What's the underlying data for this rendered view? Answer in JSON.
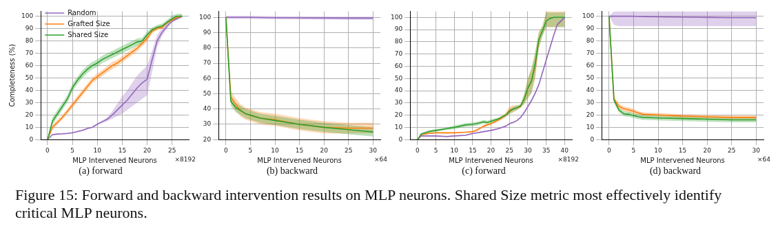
{
  "chart_data": [
    {
      "type": "line",
      "title": "(a) forward",
      "xlabel": "MLP Intervened Neurons",
      "ylabel": "Completeness (%)",
      "annotations": [
        "×8192"
      ],
      "xlim": [
        -1.35,
        28.35
      ],
      "xticks": [
        0,
        5,
        10,
        15,
        20,
        25
      ],
      "ylim": [
        0,
        104
      ],
      "yticks": [
        0,
        10,
        20,
        30,
        40,
        50,
        60,
        70,
        80,
        90,
        100
      ],
      "grid": true,
      "legend": "top left",
      "x": [
        0,
        1,
        2,
        3,
        4,
        5,
        6,
        7,
        8,
        9,
        10,
        11,
        12,
        13,
        14,
        15,
        16,
        17,
        18,
        19,
        20,
        21,
        22,
        23,
        24,
        25,
        26,
        27
      ],
      "series": [
        {
          "name": "Random",
          "color": "#9467bd",
          "values": [
            0,
            4,
            4.5,
            4.7,
            5,
            5.5,
            6.5,
            7.5,
            9,
            10,
            12.5,
            14.5,
            16.5,
            20,
            24,
            28,
            32,
            37,
            42,
            46,
            49,
            65,
            80,
            87,
            92,
            96,
            98,
            100
          ],
          "lower": [
            0,
            3.5,
            4,
            4.2,
            4.5,
            5,
            6,
            7,
            8.5,
            9.5,
            12,
            13.5,
            15,
            17,
            19,
            21,
            24,
            27,
            30,
            33,
            36,
            55,
            75,
            84,
            90,
            95,
            97,
            99
          ],
          "upper": [
            0,
            4.5,
            5,
            5.2,
            5.5,
            6,
            7,
            8,
            9.5,
            10.5,
            13,
            15.5,
            18,
            23,
            29,
            35,
            40,
            46,
            52,
            56,
            60,
            72,
            85,
            90,
            94,
            97,
            99,
            100
          ]
        },
        {
          "name": "Grafted Size",
          "color": "#ff7f0e",
          "values": [
            0,
            10,
            14,
            18,
            23,
            28,
            33,
            38,
            43,
            48,
            51,
            54,
            57,
            60,
            62,
            65,
            68,
            71,
            74,
            78,
            82,
            88,
            90,
            91,
            95,
            97,
            99,
            100
          ],
          "lower": [
            0,
            8,
            12,
            16,
            21,
            25.5,
            30.5,
            35.5,
            40.5,
            45.5,
            48.5,
            51.5,
            54.5,
            57,
            59.5,
            62.5,
            65.5,
            68.5,
            71.5,
            75.5,
            79.5,
            86,
            88.5,
            89.5,
            93.5,
            96,
            98,
            99
          ],
          "upper": [
            0,
            12,
            16,
            20,
            25,
            30.5,
            35.5,
            40.5,
            45.5,
            50.5,
            53.5,
            56.5,
            59.5,
            63,
            64.5,
            67.5,
            70.5,
            73.5,
            76.5,
            80.5,
            84.5,
            90,
            91.5,
            92.5,
            96.5,
            98,
            100,
            101
          ]
        },
        {
          "name": "Shared Size",
          "color": "#2ca02c",
          "values": [
            0,
            15,
            21,
            27,
            33,
            42,
            48,
            53,
            57,
            60,
            62,
            65,
            67,
            69,
            71,
            73,
            75,
            77,
            79,
            80,
            85,
            89,
            91,
            92,
            95,
            98,
            100,
            100
          ],
          "lower": [
            0,
            12,
            18,
            24,
            30,
            39,
            45,
            50,
            54,
            57,
            59,
            62,
            64,
            66,
            68,
            70,
            72,
            74,
            76,
            77.5,
            82.5,
            87,
            89.5,
            90.5,
            93.5,
            96.5,
            98.5,
            99
          ],
          "upper": [
            0,
            18,
            24,
            30,
            36,
            45,
            51,
            56,
            60,
            63,
            65,
            68,
            70,
            72,
            74,
            76,
            78,
            80,
            82,
            82.5,
            87.5,
            91,
            93,
            94,
            97,
            100.5,
            102,
            102
          ]
        }
      ]
    },
    {
      "type": "line",
      "title": "(b) backward",
      "xlabel": "MLP Intervened Neurons",
      "annotations": [
        "×64"
      ],
      "xlim": [
        -1.5,
        31.5
      ],
      "xticks": [
        0,
        5,
        10,
        15,
        20,
        25,
        30
      ],
      "ylim": [
        20,
        104
      ],
      "yticks": [
        20,
        30,
        40,
        50,
        60,
        70,
        80,
        90,
        100
      ],
      "grid": true,
      "x": [
        0,
        1,
        2,
        3,
        4,
        5,
        7,
        10,
        15,
        20,
        25,
        30
      ],
      "series": [
        {
          "color": "#9467bd",
          "values": [
            100,
            100,
            100,
            100,
            100,
            100,
            99.9,
            99.8,
            99.7,
            99.6,
            99.5,
            99.5
          ],
          "lower": [
            99,
            99,
            99,
            99,
            99,
            99,
            98.9,
            98.8,
            98.7,
            98.6,
            98.5,
            98.5
          ],
          "upper": [
            101,
            101,
            101,
            101,
            101,
            101,
            100.9,
            100.8,
            100.7,
            100.6,
            100.5,
            100.5
          ]
        },
        {
          "color": "#ff7f0e",
          "values": [
            100,
            48,
            43,
            39,
            37,
            36,
            34,
            33,
            30,
            28,
            27.5,
            27.5
          ],
          "lower": [
            100,
            44,
            39,
            35,
            33,
            32,
            30,
            29,
            26,
            24,
            24,
            24
          ],
          "upper": [
            100,
            52,
            47,
            43,
            41,
            40,
            38,
            37,
            34,
            32,
            31,
            31
          ]
        },
        {
          "color": "#2ca02c",
          "values": [
            100,
            45,
            41,
            39,
            37,
            36,
            34,
            32.5,
            30,
            28,
            26.5,
            25
          ],
          "lower": [
            100,
            42,
            38,
            36,
            34,
            33,
            31,
            29.5,
            27,
            25,
            23.5,
            22
          ],
          "upper": [
            100,
            48,
            44,
            42,
            40,
            39,
            37,
            35.5,
            33,
            31,
            29.5,
            28
          ]
        }
      ]
    },
    {
      "type": "line",
      "title": "(c) forward",
      "xlabel": "MLP Intervened Neurons",
      "annotations": [
        "×8192"
      ],
      "xlim": [
        -2,
        42
      ],
      "xticks": [
        0,
        5,
        10,
        15,
        20,
        25,
        30,
        35,
        40
      ],
      "ylim": [
        0,
        105
      ],
      "yticks": [
        0,
        10,
        20,
        30,
        40,
        50,
        60,
        70,
        80,
        90,
        100
      ],
      "grid": true,
      "x": [
        0,
        1,
        3,
        5,
        8,
        10,
        13,
        15,
        16,
        18,
        19,
        20,
        22,
        24,
        25,
        26,
        27,
        28,
        29,
        30,
        31,
        32,
        33,
        34,
        35,
        36,
        37,
        38,
        39,
        40
      ],
      "series": [
        {
          "color": "#9467bd",
          "values": [
            0,
            3,
            3,
            3,
            2.5,
            3,
            3.5,
            5,
            5.5,
            6.5,
            7,
            7.5,
            9,
            11,
            13,
            14,
            15.5,
            18,
            22,
            27,
            32,
            38,
            45,
            55,
            65,
            75,
            85,
            94,
            97,
            100
          ],
          "lower": [
            0,
            2.5,
            2.5,
            2.5,
            2,
            2.5,
            3,
            4.5,
            5,
            6,
            6.5,
            7,
            8.5,
            10.5,
            12.5,
            13.5,
            15,
            17.5,
            21.5,
            26,
            31,
            37,
            44,
            54,
            64,
            74,
            84,
            93,
            96,
            99.5
          ],
          "upper": [
            0,
            3.5,
            3.5,
            3.5,
            3,
            3.5,
            4,
            5.5,
            6,
            7,
            7.5,
            8,
            9.5,
            11.5,
            13.5,
            14.5,
            16,
            18.5,
            22.5,
            28,
            33,
            39,
            46,
            56,
            66,
            76,
            86,
            95,
            98,
            100.5
          ]
        },
        {
          "color": "#ff7f0e",
          "values": [
            0,
            4,
            5,
            5.5,
            5.5,
            5.5,
            6,
            6.5,
            7.5,
            11,
            12,
            13,
            16,
            20,
            24,
            25,
            26,
            27,
            33,
            42,
            48,
            60,
            82,
            null,
            null,
            null,
            null,
            null,
            null,
            null
          ],
          "lower": [
            0,
            3.5,
            4.5,
            5,
            5,
            5,
            5.5,
            6,
            6.5,
            10,
            11,
            12,
            15,
            18,
            21,
            22,
            24,
            26,
            29,
            34,
            38,
            50,
            75,
            85,
            92,
            92,
            92,
            92,
            92,
            92
          ],
          "upper": [
            0,
            4.5,
            5.5,
            6,
            6,
            6,
            6.5,
            7,
            8.5,
            12,
            13,
            14,
            17,
            22,
            27,
            28,
            28,
            28,
            37,
            50,
            58,
            70,
            88,
            93,
            105,
            105,
            105,
            105,
            105,
            105
          ]
        },
        {
          "color": "#2ca02c",
          "values": [
            0,
            4.5,
            6.5,
            7.5,
            9,
            10,
            12,
            12.5,
            13,
            14.5,
            14,
            15,
            17,
            20,
            23,
            25,
            26,
            27.5,
            33,
            42,
            48,
            62,
            82,
            89,
            97,
            99,
            100,
            100,
            100,
            100
          ],
          "lower": [
            0,
            4,
            5.5,
            6.5,
            8,
            8.5,
            10.5,
            11,
            11.5,
            13,
            12.5,
            13.5,
            16,
            19,
            21,
            23,
            24,
            26,
            29,
            34,
            38,
            52,
            75,
            85,
            92,
            92,
            92,
            92,
            92,
            92
          ],
          "upper": [
            0,
            5.5,
            7.5,
            8.5,
            10,
            11.5,
            13.5,
            14,
            14.5,
            16,
            15.5,
            16.5,
            18,
            21,
            25,
            27,
            28,
            29,
            37,
            50,
            58,
            72,
            88,
            93,
            104,
            104,
            104,
            104,
            104,
            104
          ]
        }
      ]
    },
    {
      "type": "line",
      "title": "(d) backward",
      "xlabel": "MLP Intervened Neurons",
      "annotations": [
        "×64"
      ],
      "xlim": [
        -1.5,
        31.5
      ],
      "xticks": [
        0,
        5,
        10,
        15,
        20,
        25,
        30
      ],
      "ylim": [
        0,
        104
      ],
      "yticks": [
        0,
        10,
        20,
        30,
        40,
        50,
        60,
        70,
        80,
        90,
        100
      ],
      "grid": true,
      "x": [
        0,
        1,
        2,
        3,
        4,
        5,
        6,
        7,
        10,
        15,
        20,
        25,
        30
      ],
      "series": [
        {
          "color": "#9467bd",
          "values": [
            100,
            100,
            100,
            100,
            100,
            100,
            99.8,
            99.7,
            99.5,
            99.2,
            99,
            98.8,
            98.8
          ],
          "lower": [
            100,
            93,
            92,
            92,
            92,
            92,
            92,
            92,
            92,
            92,
            92,
            92,
            92
          ],
          "upper": [
            100,
            104,
            104,
            104,
            104,
            104,
            104,
            104,
            104,
            104,
            104,
            104,
            104
          ]
        },
        {
          "color": "#ff7f0e",
          "values": [
            100,
            33,
            27,
            25,
            24,
            23,
            21.5,
            20.5,
            20,
            19,
            18.5,
            18,
            18
          ],
          "lower": [
            100,
            31,
            25,
            23,
            22,
            21,
            20,
            19,
            18.5,
            17.5,
            17,
            16.5,
            16.5
          ],
          "upper": [
            100,
            35,
            29,
            27,
            26,
            25,
            23,
            22,
            21.5,
            20.5,
            20,
            19.5,
            19.5
          ]
        },
        {
          "color": "#2ca02c",
          "values": [
            100,
            32,
            24,
            21,
            20.5,
            19.5,
            18.5,
            18,
            17.5,
            17,
            16.5,
            16,
            16
          ],
          "lower": [
            100,
            30,
            22,
            19,
            18.5,
            17.5,
            16.5,
            16,
            15.5,
            15,
            14.5,
            14,
            14
          ],
          "upper": [
            100,
            34,
            26,
            23,
            22.5,
            21.5,
            20.5,
            20,
            19.5,
            19,
            18.5,
            18,
            18
          ]
        }
      ]
    },
    {
      "type": "other",
      "annotations": [
        "Figure 15: Forward and backward intervention results on MLP neurons. Shared Size metric most effectively identify critical MLP neurons."
      ]
    }
  ]
}
